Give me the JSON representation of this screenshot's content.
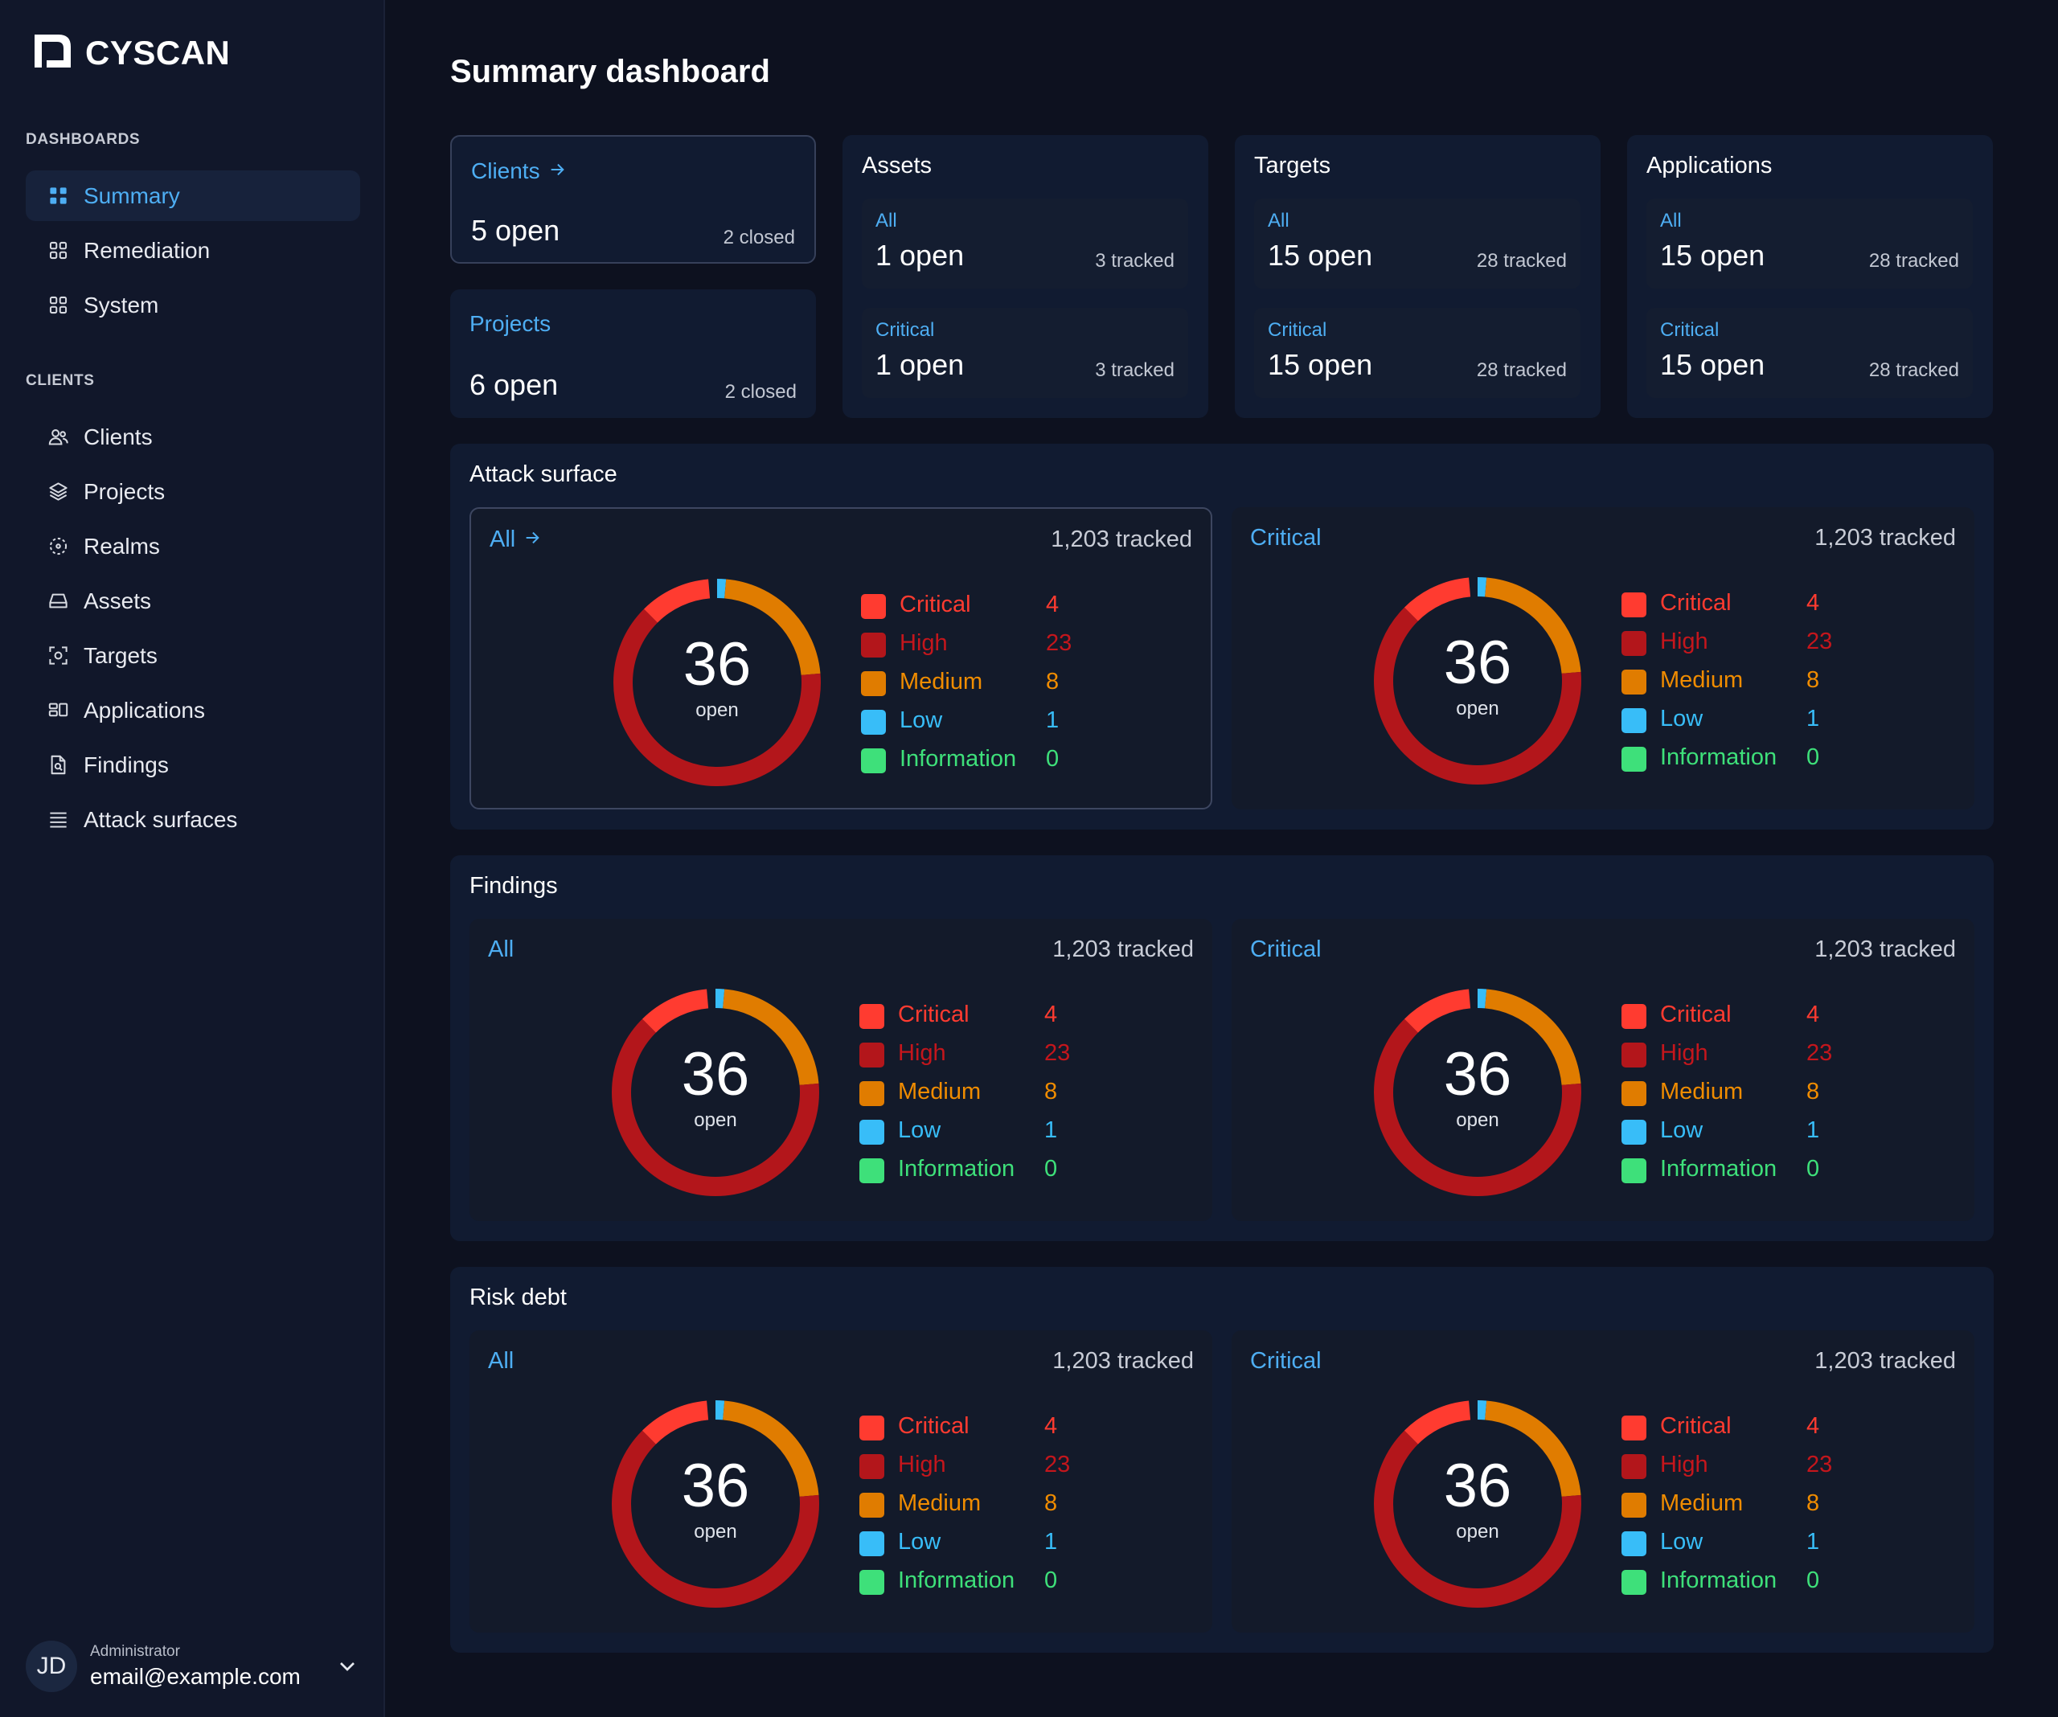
{
  "brand": {
    "name": "CYSCAN",
    "icon": "cyscan-logo-icon"
  },
  "page_title": "Summary dashboard",
  "colors": {
    "accent": "#4eaef3",
    "critical": "#ff3b30",
    "high": "#b3161b",
    "medium": "#e07c00",
    "low": "#38bdf8",
    "information": "#3ee07a"
  },
  "sidebar": {
    "dashboards_title": "DASHBOARDS",
    "dashboards": [
      {
        "label": "Summary",
        "icon": "grid-icon",
        "active": true
      },
      {
        "label": "Remediation",
        "icon": "grid-outline-icon"
      },
      {
        "label": "System",
        "icon": "grid-outline-icon"
      }
    ],
    "clients_title": "CLIENTS",
    "clients": [
      {
        "label": "Clients",
        "icon": "users-icon"
      },
      {
        "label": "Projects",
        "icon": "layers-icon"
      },
      {
        "label": "Realms",
        "icon": "realm-icon"
      },
      {
        "label": "Assets",
        "icon": "hard-drive-icon"
      },
      {
        "label": "Targets",
        "icon": "target-icon"
      },
      {
        "label": "Applications",
        "icon": "applications-icon"
      },
      {
        "label": "Findings",
        "icon": "file-search-icon"
      },
      {
        "label": "Attack surfaces",
        "icon": "list-icon"
      }
    ],
    "user": {
      "initials": "JD",
      "role": "Administrator",
      "email": "email@example.com"
    }
  },
  "summary": {
    "clients": {
      "label": "Clients",
      "open": "5 open",
      "closed": "2 closed"
    },
    "projects": {
      "label": "Projects",
      "open": "6 open",
      "closed": "2 closed"
    },
    "groups": [
      {
        "title": "Assets",
        "items": [
          {
            "label": "All",
            "open": "1 open",
            "tracked": "3 tracked"
          },
          {
            "label": "Critical",
            "open": "1 open",
            "tracked": "3 tracked"
          }
        ]
      },
      {
        "title": "Targets",
        "items": [
          {
            "label": "All",
            "open": "15 open",
            "tracked": "28 tracked"
          },
          {
            "label": "Critical",
            "open": "15 open",
            "tracked": "28 tracked"
          }
        ]
      },
      {
        "title": "Applications",
        "items": [
          {
            "label": "All",
            "open": "15 open",
            "tracked": "28 tracked"
          },
          {
            "label": "Critical",
            "open": "15 open",
            "tracked": "28 tracked"
          }
        ]
      }
    ]
  },
  "sections": [
    {
      "title": "Attack surface",
      "panels": [
        {
          "label": "All",
          "link": true,
          "tracked": "1,203 tracked",
          "total": "36",
          "total_label": "open"
        },
        {
          "label": "Critical",
          "link": false,
          "tracked": "1,203 tracked",
          "total": "36",
          "total_label": "open"
        }
      ]
    },
    {
      "title": "Findings",
      "panels": [
        {
          "label": "All",
          "link": false,
          "tracked": "1,203 tracked",
          "total": "36",
          "total_label": "open"
        },
        {
          "label": "Critical",
          "link": false,
          "tracked": "1,203 tracked",
          "total": "36",
          "total_label": "open"
        }
      ]
    },
    {
      "title": "Risk debt",
      "panels": [
        {
          "label": "All",
          "link": false,
          "tracked": "1,203 tracked",
          "total": "36",
          "total_label": "open"
        },
        {
          "label": "Critical",
          "link": false,
          "tracked": "1,203 tracked",
          "total": "36",
          "total_label": "open"
        }
      ]
    }
  ],
  "severity_legend": [
    {
      "label": "Critical",
      "count": "4",
      "color": "#ff3b30",
      "text_color": "#ff3b30"
    },
    {
      "label": "High",
      "count": "23",
      "color": "#b3161b",
      "text_color": "#c4161c"
    },
    {
      "label": "Medium",
      "count": "8",
      "color": "#e07c00",
      "text_color": "#f08c00"
    },
    {
      "label": "Low",
      "count": "1",
      "color": "#38bdf8",
      "text_color": "#38bdf8"
    },
    {
      "label": "Information",
      "count": "0",
      "color": "#3ee07a",
      "text_color": "#3ee07a"
    }
  ]
}
